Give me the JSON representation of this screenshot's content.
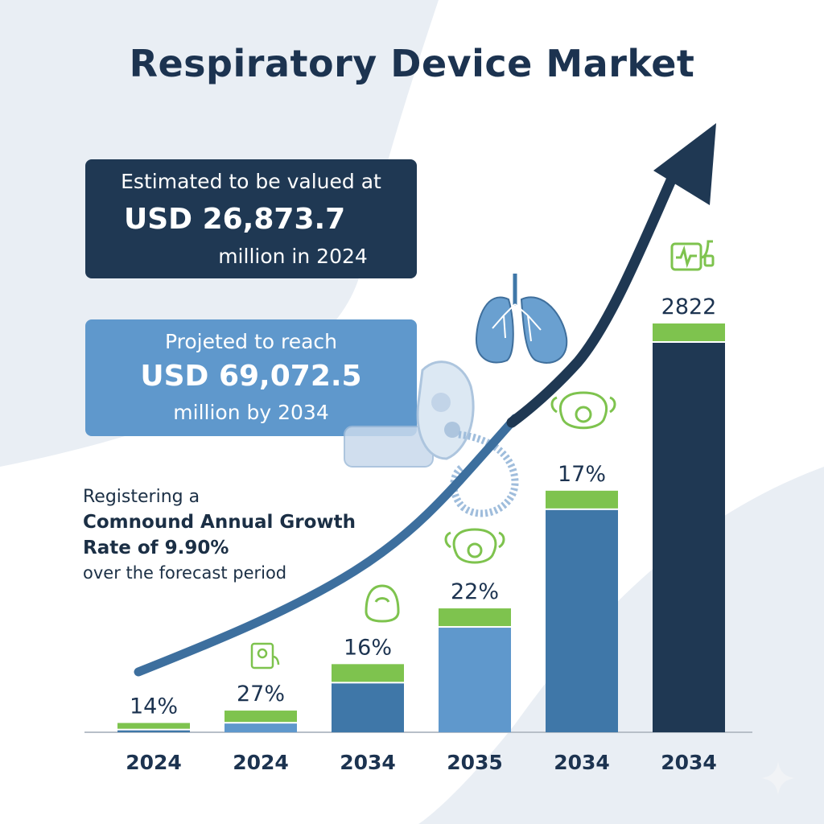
{
  "title": "Respiratory Device Market",
  "current_box": {
    "line1": "Estimated to be valued at",
    "line2": "USD 26,873.7",
    "line3": "million in 2024"
  },
  "projected_box": {
    "line1": "Projeted to reach",
    "line2": "USD 69,072.5",
    "line3": "million by 2034"
  },
  "cagr": {
    "line1": "Registering a",
    "line2": "Comnound Annual Growth",
    "line3": "Rate of 9.90%",
    "line4": "over the forecast period"
  },
  "colors": {
    "title": "#1c3350",
    "dark_navy": "#1f3853",
    "mid_blue": "#3f77a8",
    "light_blue": "#5f98cc",
    "accent_green": "#7ec34e",
    "trend_line": "#3d6f9e"
  },
  "icons": [
    "lungs-icon",
    "oxygen-mask-icon",
    "respirator-mask-icon",
    "ventilator-icon",
    "trend-arrow-icon",
    "sparkle-icon"
  ],
  "chart_data": {
    "type": "bar",
    "categories": [
      "2024",
      "2024",
      "2034",
      "2035",
      "2034",
      "2034"
    ],
    "data_labels": [
      "14%",
      "27%",
      "16%",
      "22%",
      "17%",
      "2822"
    ],
    "values": [
      1.5,
      3.5,
      11,
      20,
      39,
      66
    ],
    "bar_colors": [
      "#3f77a8",
      "#5f98cc",
      "#3f77a8",
      "#5f98cc",
      "#3f77a8",
      "#1f3853"
    ],
    "cap_color": "#7ec34e",
    "ylim": [
      0,
      66
    ],
    "grid": false,
    "legend": "none"
  }
}
